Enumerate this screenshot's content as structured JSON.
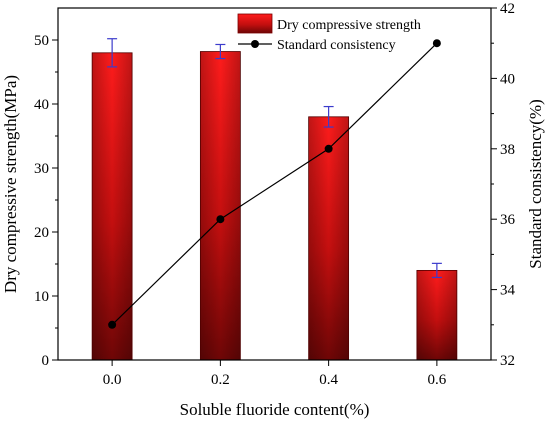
{
  "chart_data": {
    "type": "bar",
    "categories": [
      "0.0",
      "0.2",
      "0.4",
      "0.6"
    ],
    "xlabel": "Soluble fluoride content(%)",
    "ylabel_left": "Dry compressive strength(MPa)",
    "ylabel_right": "Standard consistency(%)",
    "ylim_left": [
      0,
      55
    ],
    "yticks_left": [
      "0",
      "10",
      "20",
      "30",
      "40",
      "50"
    ],
    "ylim_right": [
      32,
      42
    ],
    "yticks_right": [
      "32",
      "34",
      "36",
      "38",
      "40",
      "42"
    ],
    "series": [
      {
        "name": "Dry compressive strength",
        "kind": "bar",
        "axis": "left",
        "values": [
          48,
          48.2,
          38,
          14
        ],
        "errors": [
          2.2,
          1.1,
          1.6,
          1.1
        ],
        "color": "#e01010"
      },
      {
        "name": "Standard consistency",
        "kind": "line",
        "axis": "right",
        "values": [
          33,
          36,
          38,
          41
        ],
        "color": "#000000"
      }
    ],
    "legend_position": "top-right",
    "grid": false
  }
}
